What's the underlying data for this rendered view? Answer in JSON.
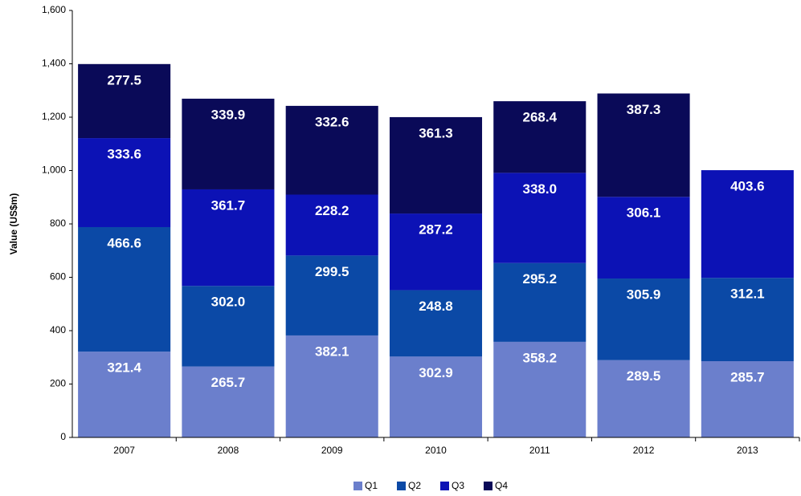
{
  "chart_data": {
    "type": "stacked_bar",
    "y_label": "Value (US$m)",
    "categories": [
      "2007",
      "2008",
      "2009",
      "2010",
      "2011",
      "2012",
      "2013"
    ],
    "series": [
      {
        "name": "Q1",
        "color": "#6b7fcc",
        "values": [
          321.4,
          265.7,
          382.1,
          302.9,
          358.2,
          289.5,
          285.7
        ],
        "value_labels": [
          "321.4",
          "265.7",
          "382.1",
          "302.9",
          "358.2",
          "289.5",
          "285.7"
        ]
      },
      {
        "name": "Q2",
        "color": "#0b49a6",
        "values": [
          466.6,
          302.0,
          299.5,
          248.8,
          295.2,
          305.9,
          312.1
        ],
        "value_labels": [
          "466.6",
          "302.0",
          "299.5",
          "248.8",
          "295.2",
          "305.9",
          "312.1"
        ]
      },
      {
        "name": "Q3",
        "color": "#0c12b5",
        "values": [
          333.6,
          361.7,
          228.2,
          287.2,
          338.0,
          306.1,
          403.6
        ],
        "value_labels": [
          "333.6",
          "361.7",
          "228.2",
          "287.2",
          "338.0",
          "306.1",
          "403.6"
        ]
      },
      {
        "name": "Q4",
        "color": "#0a0a58",
        "values": [
          277.5,
          339.9,
          332.6,
          361.3,
          268.4,
          387.3,
          null
        ],
        "value_labels": [
          "277.5",
          "339.9",
          "332.6",
          "361.3",
          "268.4",
          "387.3",
          null
        ]
      }
    ],
    "ylim": [
      0,
      1600
    ],
    "yticks": [
      0,
      200,
      400,
      600,
      800,
      {
        "value": 1000,
        "label": "1,000"
      },
      {
        "value": 1200,
        "label": "1,200"
      },
      {
        "value": 1400,
        "label": "1,400"
      },
      {
        "value": 1600,
        "label": "1,600"
      }
    ],
    "legend": "bottom"
  }
}
